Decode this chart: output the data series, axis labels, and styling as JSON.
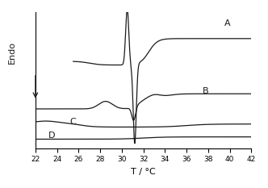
{
  "xlabel": "T / °C",
  "ylabel": "Endo",
  "xlim": [
    22,
    42
  ],
  "x_ticks": [
    22,
    24,
    26,
    28,
    30,
    32,
    34,
    36,
    38,
    40,
    42
  ],
  "label_A": "A",
  "label_B": "B",
  "label_C": "C",
  "label_D": "D",
  "line_color": "#1a1a1a",
  "background_color": "#ffffff"
}
